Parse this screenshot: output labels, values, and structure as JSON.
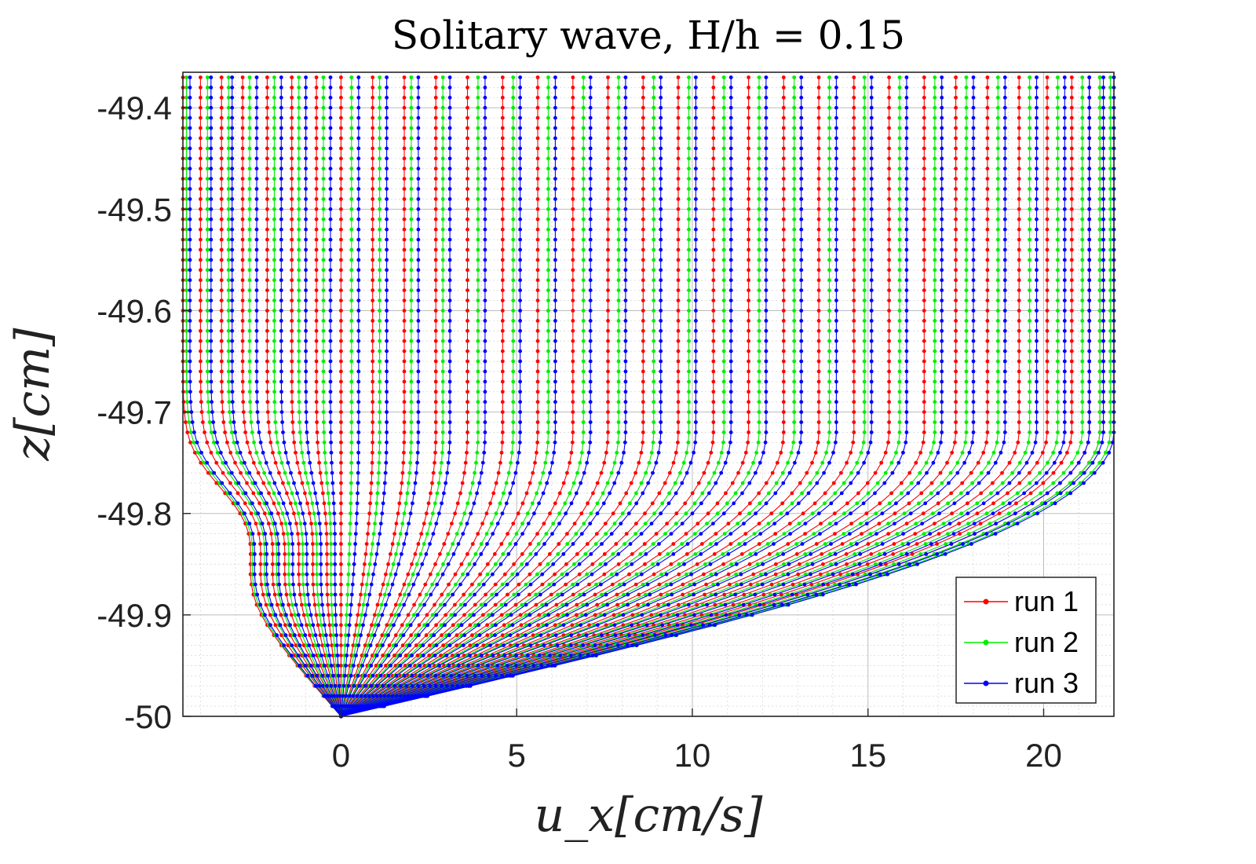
{
  "chart_data": {
    "type": "line",
    "title": "Solitary wave, H/h = 0.15",
    "xlabel": "u_x[cm/s]",
    "ylabel": "z[cm]",
    "xlim": [
      -4.5,
      22
    ],
    "ylim": [
      -50,
      -49.365
    ],
    "xticks": [
      0,
      5,
      10,
      15,
      20
    ],
    "xtick_labels": [
      "0",
      "5",
      "10",
      "15",
      "20"
    ],
    "yticks": [
      -50,
      -49.9,
      -49.8,
      -49.7,
      -49.6,
      -49.5,
      -49.4
    ],
    "ytick_labels": [
      "-50",
      "-49.9",
      "-49.8",
      "-49.7",
      "-49.6",
      "-49.5",
      "-49.4"
    ],
    "grid": true,
    "minor_grid": true,
    "legend_position": "bottom-right",
    "z_levels": [
      -50,
      -49.99,
      -49.98,
      -49.97,
      -49.96,
      -49.95,
      -49.94,
      -49.93,
      -49.92,
      -49.91,
      -49.9,
      -49.89,
      -49.88,
      -49.87,
      -49.86,
      -49.85,
      -49.84,
      -49.83,
      -49.82,
      -49.81,
      -49.8,
      -49.79,
      -49.78,
      -49.77,
      -49.76,
      -49.75,
      -49.74,
      -49.73,
      -49.72,
      -49.71,
      -49.7,
      -49.69,
      -49.68,
      -49.67,
      -49.66,
      -49.65,
      -49.64,
      -49.63,
      -49.62,
      -49.61,
      -49.6,
      -49.59,
      -49.58,
      -49.57,
      -49.56,
      -49.55,
      -49.54,
      -49.53,
      -49.52,
      -49.51,
      -49.5,
      -49.49,
      -49.48,
      -49.47,
      -49.46,
      -49.45,
      -49.44,
      -49.43,
      -49.42,
      -49.41,
      -49.4,
      -49.39,
      -49.38,
      -49.37
    ],
    "profile_shape": {
      "boundary_thickness": 0.28,
      "overshoot_depth": 0.19,
      "overshoot_width": 0.06
    },
    "series": [
      {
        "name": "run 1",
        "color": "#ff0000",
        "free_stream_velocities": [
          -4.5,
          -4.0,
          -3.4,
          -2.8,
          -2.1,
          -1.4,
          -0.7,
          0.0,
          0.9,
          1.8,
          2.7,
          3.6,
          4.6,
          5.6,
          6.6,
          7.6,
          8.6,
          9.6,
          10.6,
          11.6,
          12.6,
          13.6,
          14.6,
          15.6,
          16.6,
          17.5,
          18.4,
          19.3,
          20.1,
          20.8,
          21.3,
          21.6
        ]
      },
      {
        "name": "run 2",
        "color": "#00ee00",
        "free_stream_velocities": [
          -4.4,
          -3.8,
          -3.2,
          -2.6,
          -1.9,
          -1.2,
          -0.5,
          0.3,
          1.1,
          2.0,
          2.9,
          3.9,
          4.9,
          5.9,
          6.9,
          7.9,
          8.9,
          9.9,
          10.9,
          11.9,
          12.9,
          13.9,
          14.9,
          15.9,
          16.9,
          17.8,
          18.7,
          19.6,
          20.4,
          21.1,
          21.6,
          21.9
        ]
      },
      {
        "name": "run 3",
        "color": "#0000ff",
        "free_stream_velocities": [
          -4.3,
          -3.7,
          -3.1,
          -2.4,
          -1.7,
          -1.0,
          -0.3,
          0.5,
          1.3,
          2.2,
          3.1,
          4.1,
          5.1,
          6.1,
          7.1,
          8.1,
          9.1,
          10.1,
          11.1,
          12.1,
          13.1,
          14.1,
          15.1,
          16.1,
          17.1,
          18.0,
          18.9,
          19.8,
          20.6,
          21.3,
          21.7,
          22.0
        ]
      }
    ]
  }
}
